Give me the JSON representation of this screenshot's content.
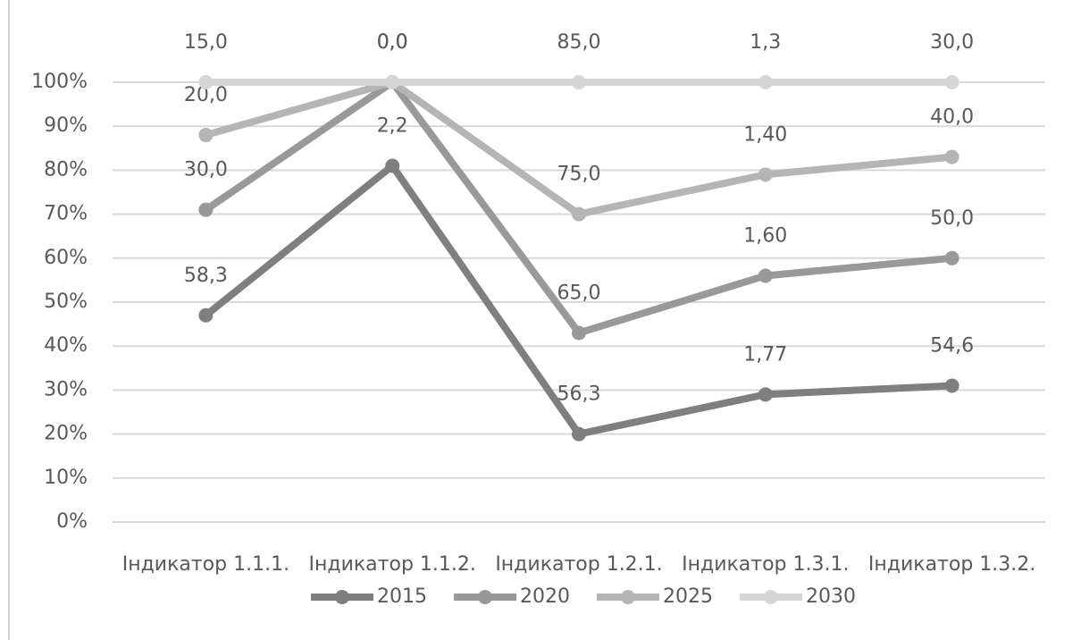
{
  "chart_data": {
    "type": "line",
    "categories": [
      "Індикатор 1.1.1.",
      "Індикатор 1.1.2.",
      "Індикатор 1.2.1.",
      "Індикатор 1.3.1.",
      "Індикатор 1.3.2."
    ],
    "series": [
      {
        "name": "2015",
        "color": "#7f7f7f",
        "values": [
          47,
          81,
          20,
          29,
          31
        ],
        "point_labels": [
          "58,3",
          "2,2",
          "56,3",
          "1,77",
          "54,6"
        ]
      },
      {
        "name": "2020",
        "color": "#999999",
        "values": [
          71,
          100,
          43,
          56,
          60
        ],
        "point_labels": [
          "30,0",
          "0,0",
          "65,0",
          "1,60",
          "50,0"
        ]
      },
      {
        "name": "2025",
        "color": "#b5b5b5",
        "values": [
          88,
          100,
          70,
          79,
          83
        ],
        "point_labels": [
          "20,0",
          "0,0",
          "75,0",
          "1,40",
          "40,0"
        ]
      },
      {
        "name": "2030",
        "color": "#d6d6d6",
        "values": [
          100,
          100,
          100,
          100,
          100
        ],
        "point_labels": [
          "15,0",
          "0,0",
          "85,0",
          "1,3",
          "30,0"
        ]
      }
    ],
    "ylim": [
      0,
      100
    ],
    "yticks": [
      {
        "value": 0,
        "label": "0%"
      },
      {
        "value": 10,
        "label": "10%"
      },
      {
        "value": 20,
        "label": "20%"
      },
      {
        "value": 30,
        "label": "30%"
      },
      {
        "value": 40,
        "label": "40%"
      },
      {
        "value": 50,
        "label": "50%"
      },
      {
        "value": 60,
        "label": "60%"
      },
      {
        "value": 70,
        "label": "70%"
      },
      {
        "value": 80,
        "label": "80%"
      },
      {
        "value": 90,
        "label": "90%"
      },
      {
        "value": 100,
        "label": "100%"
      }
    ],
    "grid": true,
    "legend": "bottom"
  }
}
